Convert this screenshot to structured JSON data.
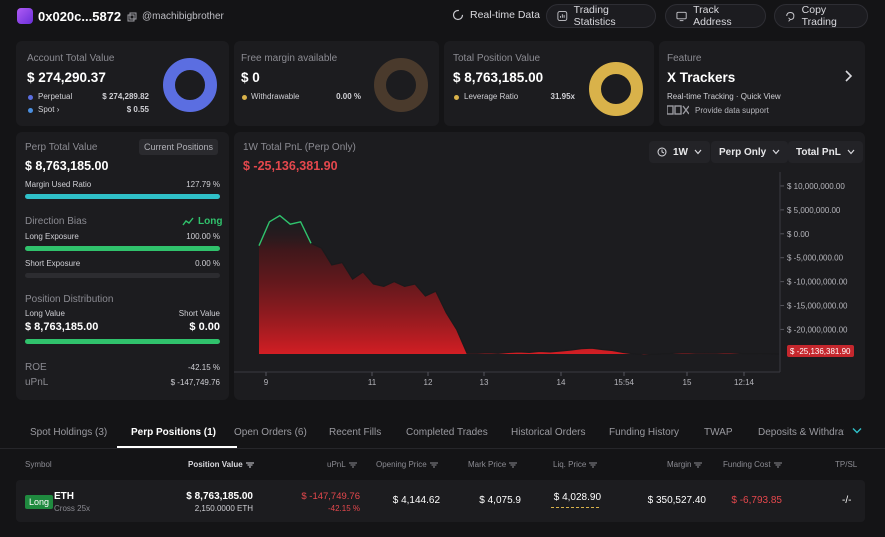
{
  "header": {
    "address": "0x020c...5872",
    "username": "@machibigbrother",
    "realtime_label": "Real-time Data",
    "trading_stats_label": "Trading Statistics",
    "track_address_label": "Track Address",
    "copy_trading_label": "Copy Trading"
  },
  "account": {
    "title": "Account Total Value",
    "value": "$ 274,290.37",
    "perpetual_label": "Perpetual",
    "perpetual_value": "$ 274,289.82",
    "spot_label": "Spot",
    "spot_value": "$ 0.55",
    "perp_share": 0.999998,
    "color": "#5b6ee1"
  },
  "margin": {
    "title": "Free margin available",
    "value": "$ 0",
    "withdrawable_label": "Withdrawable",
    "withdrawable_value": "0.00 %",
    "withdrawable_share": 0.0
  },
  "position": {
    "title": "Total Position Value",
    "value": "$ 8,763,185.00",
    "leverage_label": "Leverage Ratio",
    "leverage_value": "31.95x",
    "color": "#d9b24a"
  },
  "feature": {
    "title": "Feature",
    "name": "X Trackers",
    "subtitle": "Real-time Tracking · Quick View",
    "provider": "Provide data support"
  },
  "left": {
    "perp_total_label": "Perp Total Value",
    "current_positions_label": "Current Positions",
    "perp_total_value": "$ 8,763,185.00",
    "margin_used_label": "Margin Used Ratio",
    "margin_used_value": "127.79 %",
    "margin_used_fill": 1.0,
    "direction_bias_label": "Direction Bias",
    "direction_bias_value": "Long",
    "long_exposure_label": "Long Exposure",
    "long_exposure_value": "100.00 %",
    "long_exposure_fill": 1.0,
    "short_exposure_label": "Short Exposure",
    "short_exposure_value": "0.00 %",
    "short_exposure_fill": 0.0,
    "position_distribution_label": "Position Distribution",
    "long_value_label": "Long Value",
    "short_value_label": "Short Value",
    "long_value": "$ 8,763,185.00",
    "short_value": "$ 0.00",
    "roe_label": "ROE",
    "roe_value": "-42.15 %",
    "upnl_label": "uPnL",
    "upnl_value": "$ -147,749.76"
  },
  "chart": {
    "title": "1W Total PnL (Perp Only)",
    "current_value": "$ -25,136,381.90",
    "period_label": "1W",
    "scope_label": "Perp Only",
    "metric_label": "Total PnL",
    "current_tag": "$ -25,136,381.90"
  },
  "chart_data": {
    "type": "area",
    "title": "1W Total PnL (Perp Only)",
    "xlabel": "",
    "ylabel": "",
    "y_ticks": [
      "$ 10,000,000.00",
      "$ 5,000,000.00",
      "$ 0.00",
      "$ -5,000,000.00",
      "$ -10,000,000.00",
      "$ -15,000,000.00",
      "$ -20,000,000.00"
    ],
    "x_ticks": [
      "9",
      "11",
      "12",
      "13",
      "14",
      "15:54",
      "15",
      "12:14"
    ],
    "ylim": [
      -25136381.9,
      12500000
    ],
    "x": [
      0,
      1,
      2,
      3,
      4,
      5,
      6,
      7,
      8,
      9,
      10,
      11,
      12,
      13,
      14,
      15,
      16,
      17,
      18,
      19,
      20,
      21,
      22,
      23,
      24,
      25,
      26,
      27,
      28,
      29,
      30,
      31,
      32,
      33,
      34,
      35,
      36,
      37,
      38,
      39,
      40,
      41,
      42,
      43,
      44,
      45,
      46,
      47,
      48,
      49,
      50
    ],
    "values": [
      -2500000,
      2500000,
      3800000,
      2000000,
      2500000,
      -2000000,
      -3000000,
      -6500000,
      -6000000,
      -9500000,
      -8000000,
      -10500000,
      -11000000,
      -10000000,
      -11000000,
      -10500000,
      -13000000,
      -12000000,
      -16500000,
      -20000000,
      -25000000,
      -25000000,
      -24900000,
      -25000000,
      -24800000,
      -24700000,
      -24800000,
      -24600000,
      -24700000,
      -24500000,
      -24300000,
      -24000000,
      -23900000,
      -24200000,
      -24400000,
      -24800000,
      -25100000,
      -25300000,
      -25200000,
      -25100000,
      -25000000,
      -24900000,
      -25000000,
      -24950000,
      -25000000,
      -24900000,
      -25000000,
      -25100000,
      -25050000,
      -25100000,
      -25136381.9
    ],
    "series": [
      {
        "name": "Total PnL",
        "color_positive": "#30c26c",
        "color_negative": "#e5484d"
      }
    ]
  },
  "tabs": [
    {
      "label": "Spot Holdings (3)"
    },
    {
      "label": "Perp Positions (1)"
    },
    {
      "label": "Open Orders (6)"
    },
    {
      "label": "Recent Fills"
    },
    {
      "label": "Completed Trades"
    },
    {
      "label": "Historical Orders"
    },
    {
      "label": "Funding History"
    },
    {
      "label": "TWAP"
    },
    {
      "label": "Deposits & Withdraw"
    }
  ],
  "table": {
    "headers": {
      "symbol": "Symbol",
      "position_value": "Position Value",
      "upnl": "uPnL",
      "opening_price": "Opening Price",
      "mark_price": "Mark Price",
      "liq_price": "Liq. Price",
      "margin": "Margin",
      "funding_cost": "Funding Cost",
      "tpsl": "TP/SL"
    },
    "row": {
      "side": "Long",
      "coin": "ETH",
      "leverage": "Cross 25x",
      "position_value": "$ 8,763,185.00",
      "position_size": "2,150.0000 ETH",
      "upnl": "$ -147,749.76",
      "upnl_pct": "-42.15 %",
      "opening_price": "$ 4,144.62",
      "mark_price": "$ 4,075.9",
      "liq_price": "$ 4,028.90",
      "margin": "$ 350,527.40",
      "funding_cost": "$ -6,793.85",
      "tpsl": "-/-"
    }
  }
}
